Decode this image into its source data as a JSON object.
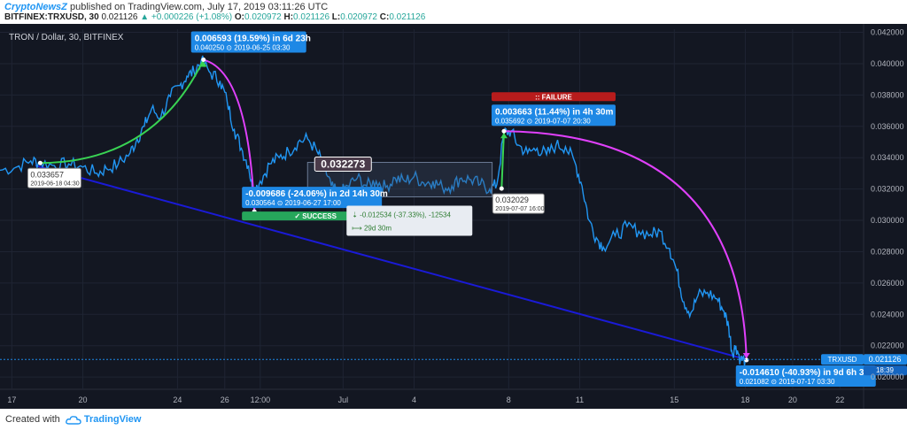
{
  "header": {
    "publisher": "CryptoNewsZ",
    "published_text": "published on TradingView.com, July 17, 2019 03:11:26 UTC",
    "symbol": "BITFINEX:TRXUSD, 30",
    "last": "0.021126",
    "change": "+0.000226 (+1.08%)",
    "o_label": "O:",
    "o_value": "0.020972",
    "h_label": "H:",
    "h_value": "0.021126",
    "l_label": "L:",
    "l_value": "0.020972",
    "c_label": "C:",
    "c_value": "0.021126"
  },
  "footer": {
    "created_with": "Created with",
    "brand": "TradingView"
  },
  "colors": {
    "background": "#131722",
    "grid": "#1f2433",
    "price_line": "#2196f3",
    "trend_line": "#1a1ad6",
    "arc_up": "#39d353",
    "arc_down": "#e040fb",
    "label_bg": "#1e88e5",
    "success": "#26a65b",
    "failure": "#b71c1c",
    "range_box": "#3c4b63"
  },
  "chart_data": {
    "type": "line",
    "title": "TRON / Dollar, 30, BITFINEX",
    "ylim": [
      0.0195,
      0.0422
    ],
    "y_ticks": [
      "0.042000",
      "0.040000",
      "0.038000",
      "0.036000",
      "0.034000",
      "0.032000",
      "0.030000",
      "0.028000",
      "0.026000",
      "0.024000",
      "0.022000",
      "0.020000"
    ],
    "y_tick_values": [
      0.042,
      0.04,
      0.038,
      0.036,
      0.034,
      0.032,
      0.03,
      0.028,
      0.026,
      0.024,
      0.022,
      0.02
    ],
    "x_ticks": [
      "17",
      "20",
      "24",
      "26",
      "12:00",
      "Jul",
      "4",
      "8",
      "11",
      "15",
      "18",
      "20",
      "22"
    ],
    "x_tick_days": [
      17,
      20,
      24,
      26,
      27.5,
      31,
      34,
      38,
      41,
      45,
      48,
      50,
      52
    ],
    "x_range_days": [
      16.5,
      53
    ],
    "series": [
      {
        "points": [
          [
            16.5,
            0.0332
          ],
          [
            17.2,
            0.0334
          ],
          [
            17.8,
            0.0338
          ],
          [
            18.2,
            0.0337
          ],
          [
            18.8,
            0.0335
          ],
          [
            19.4,
            0.0336
          ],
          [
            20.0,
            0.0334
          ],
          [
            20.6,
            0.033
          ],
          [
            21.0,
            0.0333
          ],
          [
            21.5,
            0.0336
          ],
          [
            22.0,
            0.0343
          ],
          [
            22.3,
            0.0352
          ],
          [
            22.6,
            0.036
          ],
          [
            22.9,
            0.0371
          ],
          [
            23.3,
            0.0366
          ],
          [
            23.7,
            0.0379
          ],
          [
            24.1,
            0.0386
          ],
          [
            24.4,
            0.0392
          ],
          [
            24.7,
            0.0395
          ],
          [
            25.0,
            0.0402
          ],
          [
            25.4,
            0.0394
          ],
          [
            25.8,
            0.0389
          ],
          [
            26.1,
            0.0376
          ],
          [
            26.4,
            0.0358
          ],
          [
            26.7,
            0.0346
          ],
          [
            27.0,
            0.0335
          ],
          [
            27.2,
            0.0318
          ],
          [
            27.5,
            0.0325
          ],
          [
            27.9,
            0.0336
          ],
          [
            28.3,
            0.034
          ],
          [
            28.7,
            0.0344
          ],
          [
            29.1,
            0.035
          ],
          [
            29.5,
            0.0352
          ],
          [
            29.9,
            0.0344
          ],
          [
            30.2,
            0.0334
          ],
          [
            30.5,
            0.0322
          ],
          [
            30.8,
            0.0316
          ],
          [
            31.2,
            0.0322
          ],
          [
            31.6,
            0.0327
          ],
          [
            32.0,
            0.0322
          ],
          [
            32.4,
            0.0325
          ],
          [
            32.8,
            0.0321
          ],
          [
            33.2,
            0.0327
          ],
          [
            33.6,
            0.0325
          ],
          [
            34.0,
            0.0328
          ],
          [
            34.4,
            0.0324
          ],
          [
            34.8,
            0.0325
          ],
          [
            35.2,
            0.0321
          ],
          [
            35.6,
            0.0322
          ],
          [
            36.0,
            0.0327
          ],
          [
            36.4,
            0.0326
          ],
          [
            36.8,
            0.0323
          ],
          [
            37.2,
            0.032
          ],
          [
            37.5,
            0.0323
          ],
          [
            37.8,
            0.0356
          ],
          [
            38.1,
            0.0357
          ],
          [
            38.4,
            0.0348
          ],
          [
            38.8,
            0.0343
          ],
          [
            39.2,
            0.0346
          ],
          [
            39.6,
            0.0342
          ],
          [
            40.0,
            0.0348
          ],
          [
            40.4,
            0.0347
          ],
          [
            40.8,
            0.0337
          ],
          [
            41.1,
            0.0322
          ],
          [
            41.4,
            0.03
          ],
          [
            41.7,
            0.0289
          ],
          [
            42.0,
            0.0283
          ],
          [
            42.5,
            0.029
          ],
          [
            43.0,
            0.0296
          ],
          [
            43.5,
            0.0293
          ],
          [
            44.0,
            0.0291
          ],
          [
            44.4,
            0.0293
          ],
          [
            44.8,
            0.0282
          ],
          [
            45.1,
            0.0268
          ],
          [
            45.4,
            0.0248
          ],
          [
            45.7,
            0.0241
          ],
          [
            46.0,
            0.0252
          ],
          [
            46.4,
            0.0254
          ],
          [
            46.8,
            0.025
          ],
          [
            47.1,
            0.0242
          ],
          [
            47.3,
            0.0232
          ],
          [
            47.45,
            0.0215
          ],
          [
            47.6,
            0.022
          ],
          [
            47.8,
            0.0211
          ],
          [
            48.0,
            0.0211
          ]
        ]
      }
    ],
    "last_price": {
      "symbol": "TRXUSD",
      "value": "0.021126",
      "countdown": "18:39",
      "price": 0.021126
    },
    "annotations": {
      "point_low_start": {
        "price": "0.033657",
        "date": "2019-06-18 04:30",
        "day": 18.2,
        "value": 0.033657
      },
      "point_peak": {
        "text": "0.006593 (19.59%) in 6d 23h",
        "price": "0.040250",
        "date": "2019-06-25  03:30",
        "day": 25.1,
        "value": 0.04025
      },
      "point_drop": {
        "text": "-0.009686 (-24.06%) in 2d 14h 30m",
        "price": "0.030564",
        "date": "2019-06-27  17:00",
        "day": 27.2,
        "value": 0.030564
      },
      "success_label": "SUCCESS",
      "range_box": {
        "label": "0.032273",
        "change": "-0.012534 (-37.33%), -12534",
        "duration": "29d 30m",
        "day_start": 29.5,
        "day_end": 37.3,
        "top": 0.0337,
        "bottom": 0.0315
      },
      "point_jul7": {
        "price": "0.032029",
        "date": "2019-07-07 16:00",
        "day": 37.7,
        "value": 0.032029
      },
      "point_jul7_peak": {
        "text": "0.003663 (11.44%) in 4h 30m",
        "price": "0.035692",
        "date": "2019-07-07  20:30",
        "day": 37.8,
        "value": 0.035692
      },
      "failure_label": "FAILURE",
      "point_end": {
        "text": "-0.014610 (-40.93%) in 9d 6h 30m",
        "price": "0.021082",
        "date": "2019-07-17  03:30",
        "day": 48.0,
        "value": 0.021082
      }
    }
  }
}
